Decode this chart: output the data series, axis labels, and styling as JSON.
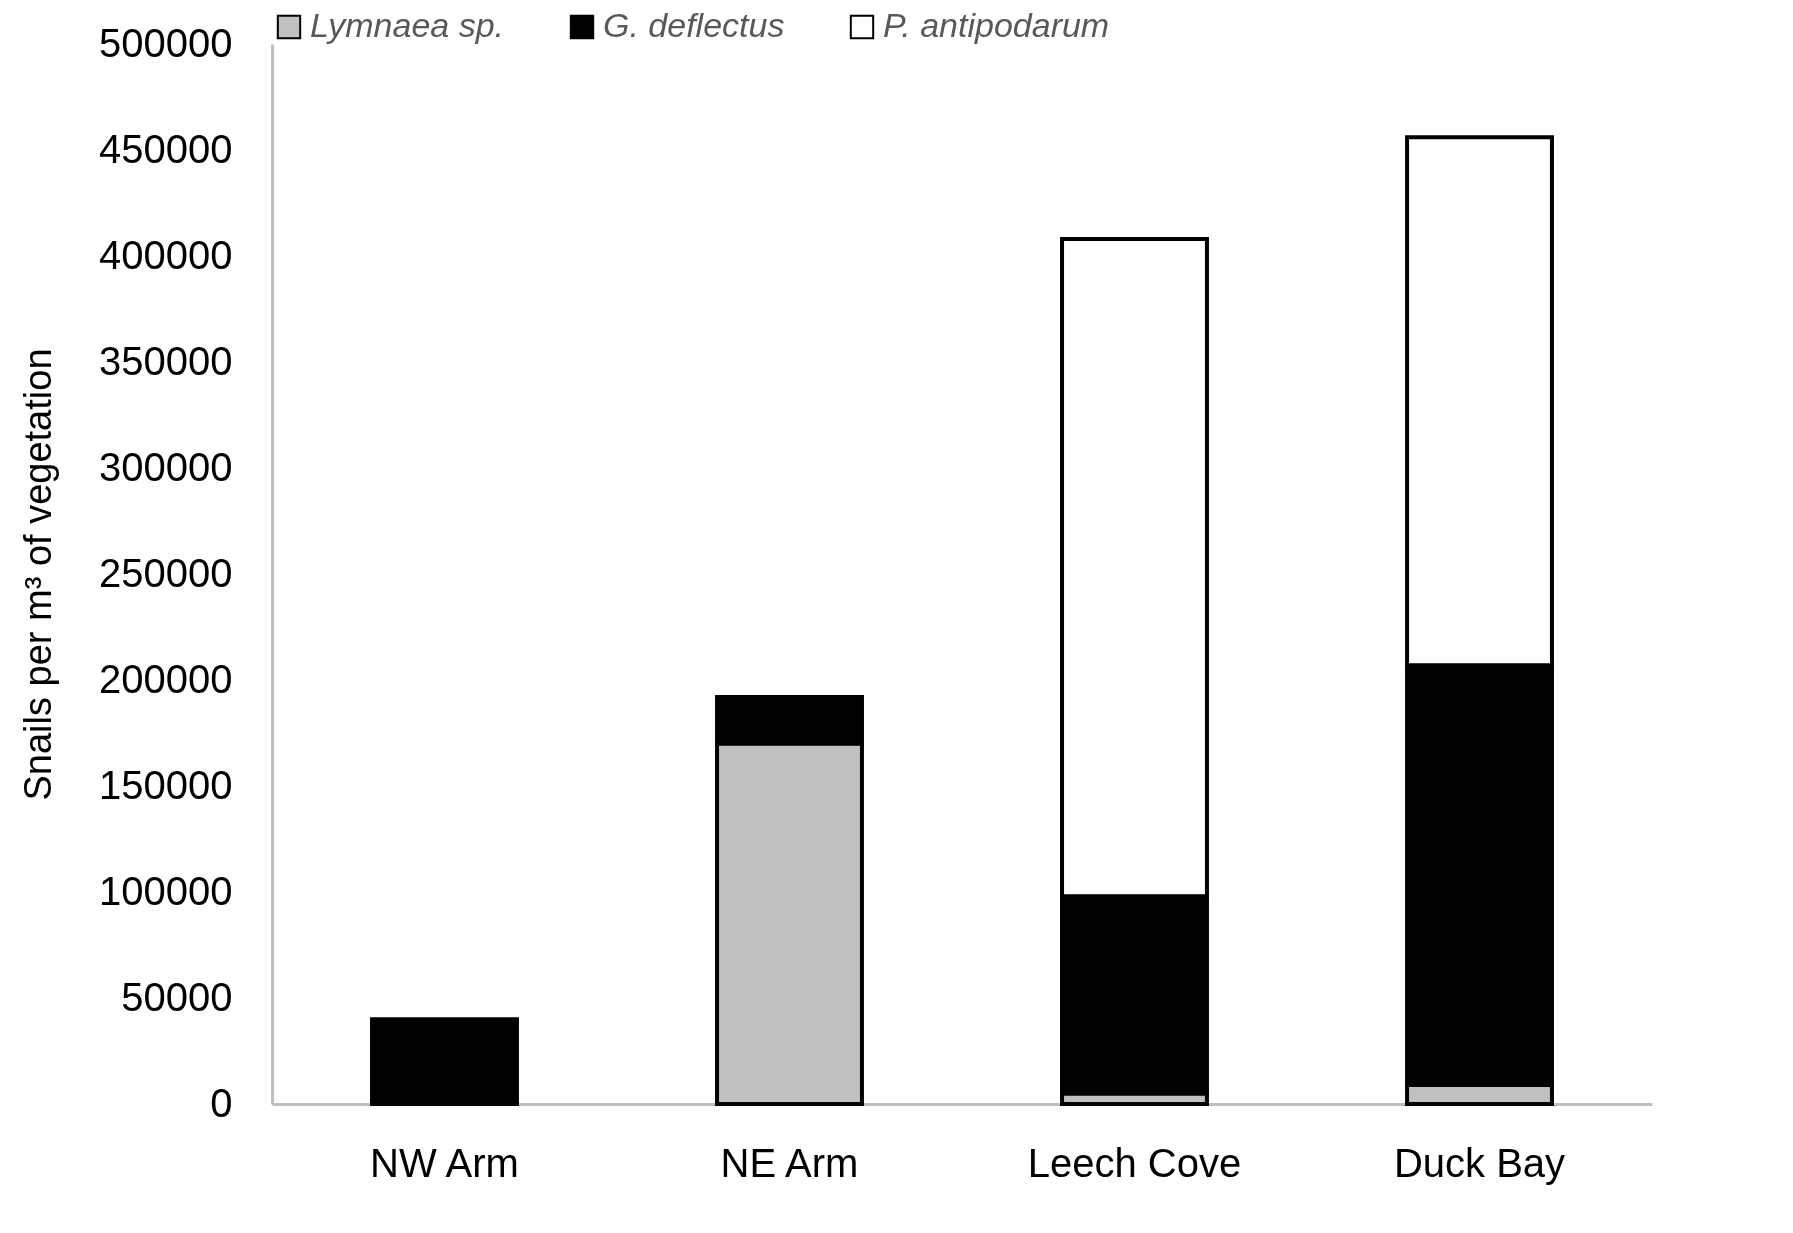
{
  "chart_data": {
    "type": "bar",
    "stacked": true,
    "ylabel": "Snails per m³ of vegetation",
    "categories": [
      "NW Arm",
      "NE Arm",
      "Leech Cove",
      "Duck Bay"
    ],
    "series": [
      {
        "name": "Lymnaea sp.",
        "color": "#c0c0c0",
        "values": [
          0,
          170000,
          5000,
          9000
        ]
      },
      {
        "name": "G. deflectus",
        "color": "#000000",
        "values": [
          40000,
          22000,
          93000,
          198000
        ]
      },
      {
        "name": "P. antipodarum",
        "color": "#ffffff",
        "values": [
          0,
          0,
          310000,
          249000
        ]
      }
    ],
    "ylim": [
      0,
      500000
    ],
    "yticks": [
      0,
      50000,
      100000,
      150000,
      200000,
      250000,
      300000,
      350000,
      400000,
      450000,
      500000
    ],
    "grid": false,
    "legend": "top"
  }
}
